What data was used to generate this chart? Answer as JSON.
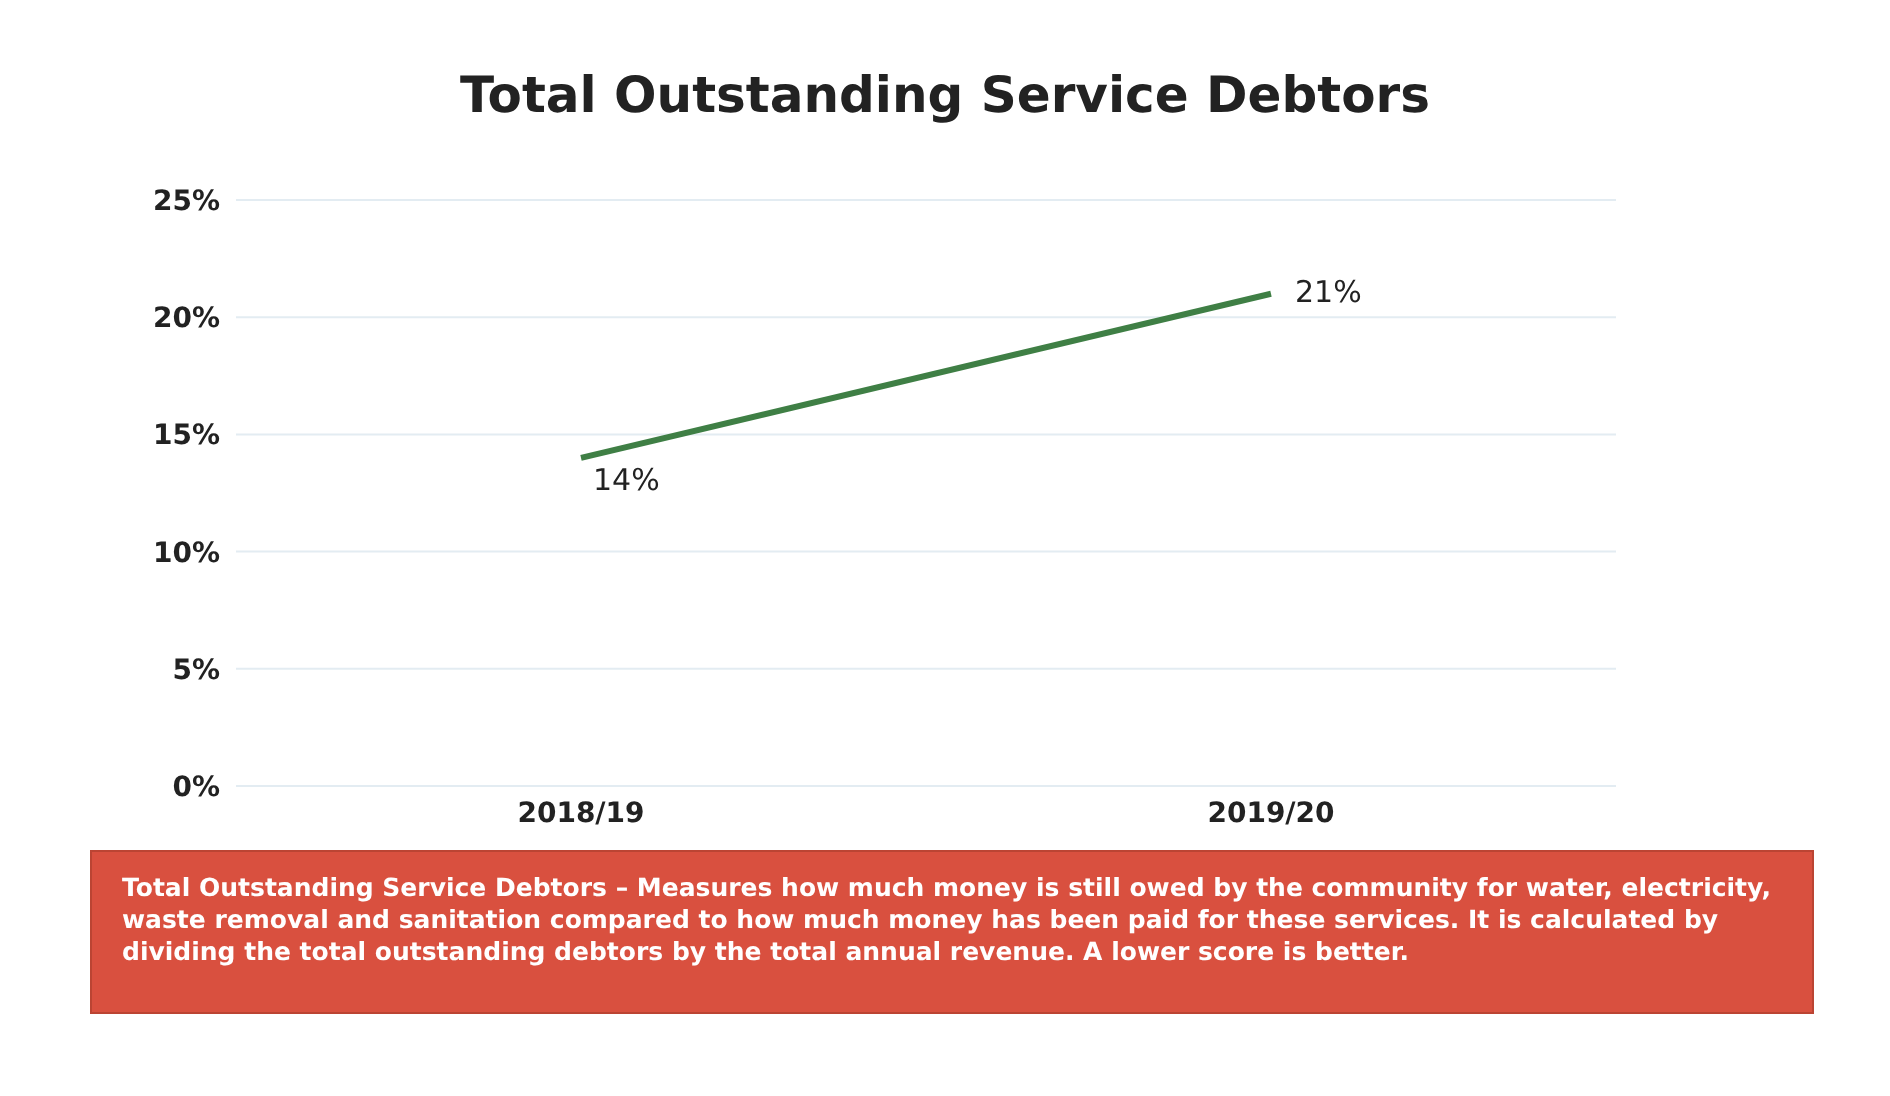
{
  "chart_data": {
    "type": "line",
    "title": "Total Outstanding Service Debtors",
    "categories": [
      "2018/19",
      "2019/20"
    ],
    "series": [
      {
        "color": "#3f7f45",
        "values": [
          14,
          21
        ],
        "value_labels": [
          "14%",
          "21%"
        ]
      }
    ],
    "ylim": [
      0,
      25
    ],
    "yticks": [
      {
        "value": 0,
        "label": "0%"
      },
      {
        "value": 5,
        "label": "5%"
      },
      {
        "value": 10,
        "label": "10%"
      },
      {
        "value": 15,
        "label": "15%"
      },
      {
        "value": 20,
        "label": "20%"
      },
      {
        "value": 25,
        "label": "25%"
      }
    ],
    "grid": "y",
    "marker": "none",
    "line_style": "solid",
    "annotations": [
      "Total Outstanding Service Debtors – Measures how much money is still owed by the community for water, electricity, waste removal and sanitation compared to how much money has been paid for these services. It is calculated by dividing the total outstanding debtors by the total annual revenue. A lower score is better."
    ]
  }
}
